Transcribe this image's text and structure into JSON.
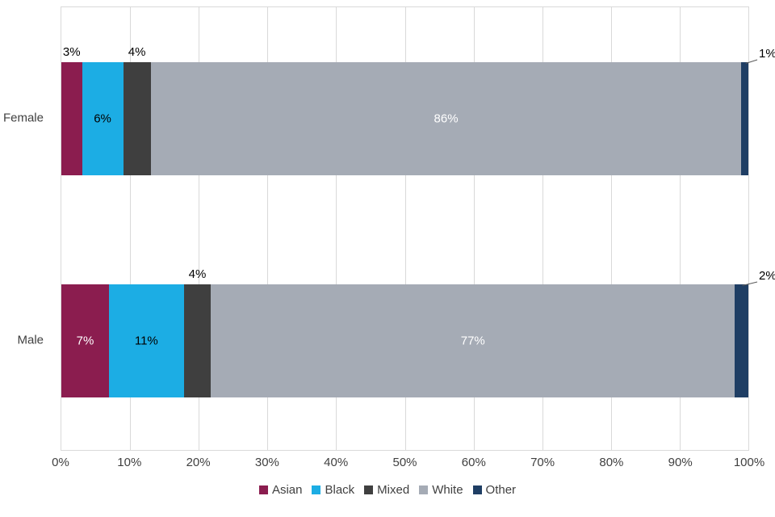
{
  "chart_data": {
    "type": "bar",
    "orientation": "horizontal",
    "stacked": true,
    "title": "",
    "xlabel": "",
    "ylabel": "",
    "xlim": [
      0,
      100
    ],
    "x_ticks": [
      "0%",
      "10%",
      "20%",
      "30%",
      "40%",
      "50%",
      "60%",
      "70%",
      "80%",
      "90%",
      "100%"
    ],
    "grid": true,
    "legend_position": "bottom",
    "categories": [
      "Female",
      "Male"
    ],
    "series": [
      {
        "name": "Asian",
        "color": "#8B1D4F",
        "inside_label_color": "#FFFFFF",
        "values": [
          3,
          7
        ]
      },
      {
        "name": "Black",
        "color": "#1CADE4",
        "inside_label_color": "#000000",
        "values": [
          6,
          11
        ]
      },
      {
        "name": "Mixed",
        "color": "#3F3F3F",
        "inside_label_color": "#FFFFFF",
        "values": [
          4,
          4
        ]
      },
      {
        "name": "White",
        "color": "#A5ABB5",
        "inside_label_color": "#FFFFFF",
        "values": [
          86,
          77
        ]
      },
      {
        "name": "Other",
        "color": "#1F3E64",
        "inside_label_color": "#FFFFFF",
        "values": [
          1,
          2
        ]
      }
    ],
    "data_labels": {
      "Female": [
        "3%",
        "6%",
        "4%",
        "86%",
        "1%"
      ],
      "Male": [
        "7%",
        "11%",
        "4%",
        "77%",
        "2%"
      ]
    }
  },
  "colors": {
    "grid": "#D9D9D9",
    "axis_text": "#404040",
    "label_text": "#000000",
    "leader_line": "#595959"
  }
}
